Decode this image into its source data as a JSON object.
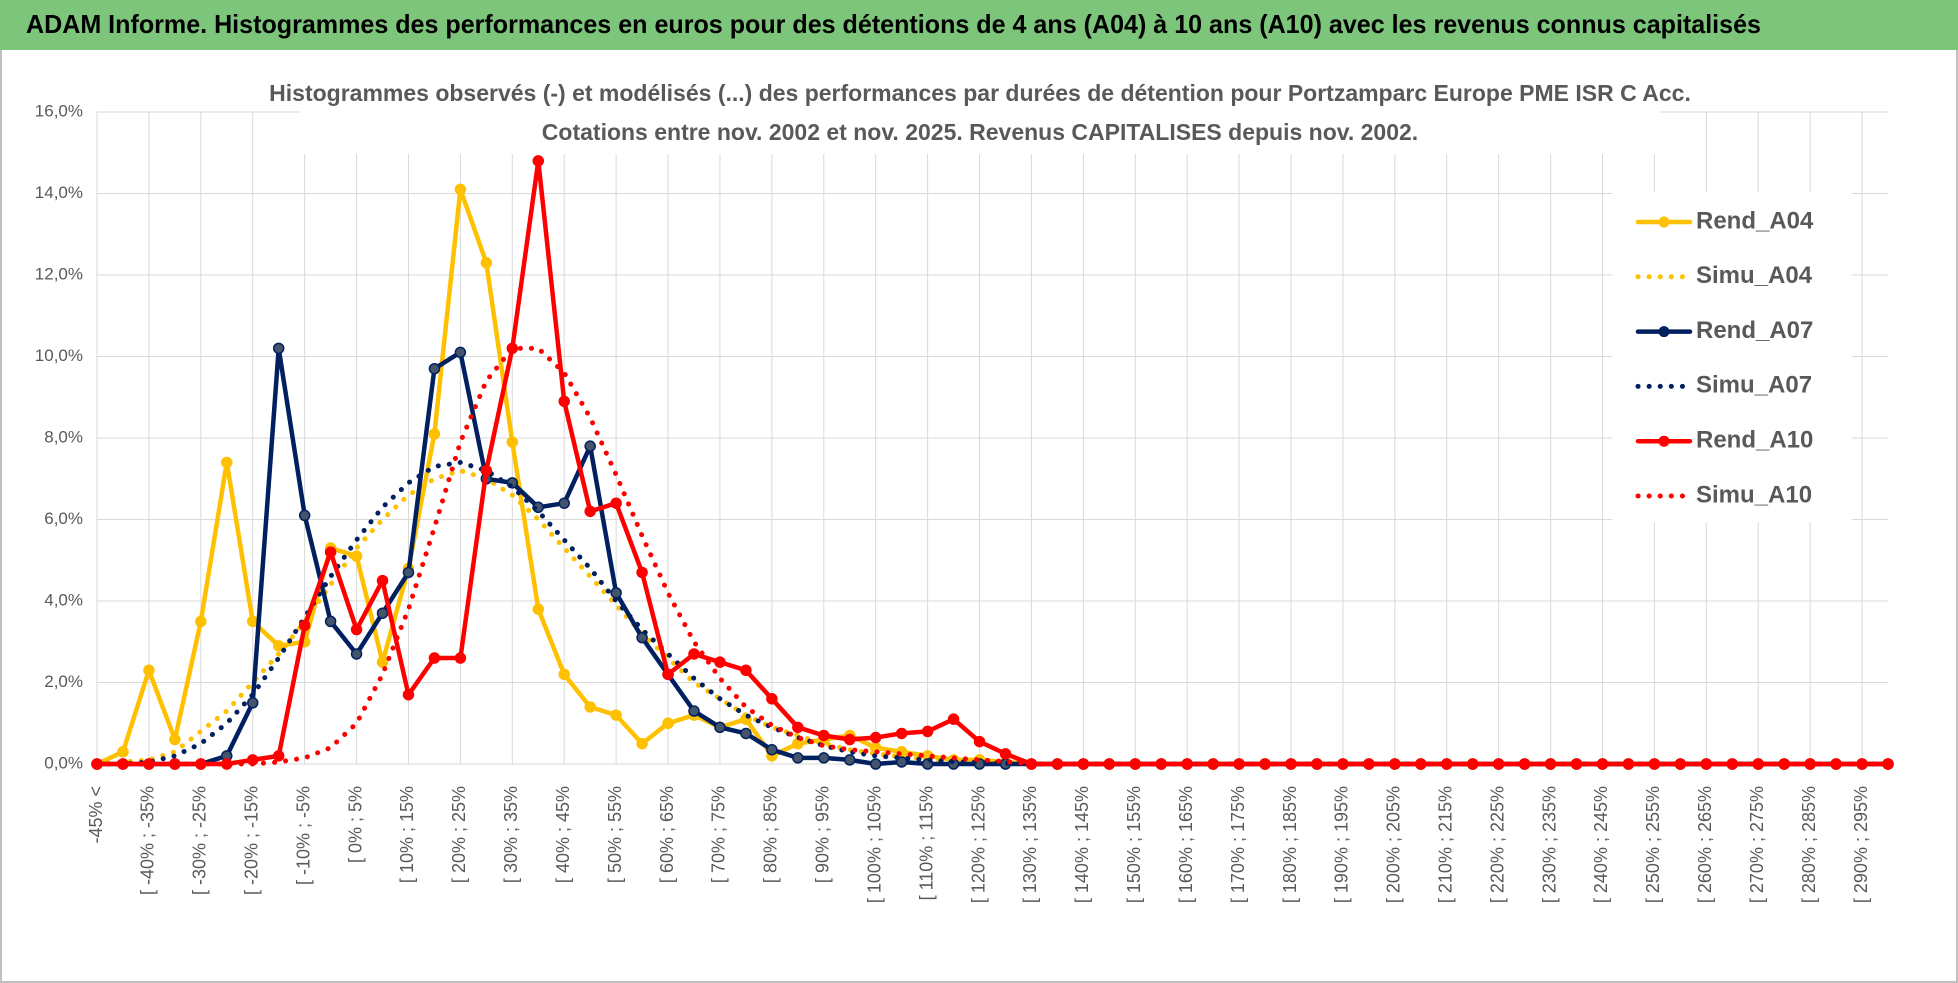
{
  "header": {
    "title": "ADAM Informe. Histogrammes des performances en euros pour des détentions de 4 ans (A04) à 10 ans (A10) avec les revenus connus capitalisés"
  },
  "chart_data": {
    "type": "line",
    "title": "Histogrammes observés (-) et modélisés (...) des performances par durées de détention pour Portzamparc Europe PME ISR C Acc.",
    "subtitle": "Cotations entre nov. 2002 et nov. 2025. Revenus CAPITALISES depuis nov. 2002.",
    "categories": [
      "-45% <",
      null,
      "[ -40% ; -35%",
      null,
      "[ -30% ; -25%",
      null,
      "[ -20% ; -15%",
      null,
      "[ -10% ; -5%",
      null,
      "[ 0% ; 5%",
      null,
      "[ 10% ; 15%",
      null,
      "[ 20% ; 25%",
      null,
      "[ 30% ; 35%",
      null,
      "[ 40% ; 45%",
      null,
      "[ 50% ; 55%",
      null,
      "[ 60% ; 65%",
      null,
      "[ 70% ; 75%",
      null,
      "[ 80% ; 85%",
      null,
      "[ 90% ; 95%",
      null,
      "[ 100% ; 105%",
      null,
      "[ 110% ; 115%",
      null,
      "[ 120% ; 125%",
      null,
      "[ 130% ; 135%",
      null,
      "[ 140% ; 145%",
      null,
      "[ 150% ; 155%",
      null,
      "[ 160% ; 165%",
      null,
      "[ 170% ; 175%",
      null,
      "[ 180% ; 185%",
      null,
      "[ 190% ; 195%",
      null,
      "[ 200% ; 205%",
      null,
      "[ 210% ; 215%",
      null,
      "[ 220% ; 225%",
      null,
      "[ 230% ; 235%",
      null,
      "[ 240% ; 245%",
      null,
      "[ 250% ; 255%",
      null,
      "[ 260% ; 265%",
      null,
      "[ 270% ; 275%",
      null,
      "[ 280% ; 285%",
      null,
      "[ 290% ; 295%",
      null
    ],
    "ylim": [
      0,
      16
    ],
    "yticks": [
      {
        "value": 0,
        "label": "0,0%"
      },
      {
        "value": 2,
        "label": "2,0%"
      },
      {
        "value": 4,
        "label": "4,0%"
      },
      {
        "value": 6,
        "label": "6,0%"
      },
      {
        "value": 8,
        "label": "8,0%"
      },
      {
        "value": 10,
        "label": "10,0%"
      },
      {
        "value": 12,
        "label": "12,0%"
      },
      {
        "value": 14,
        "label": "14,0%"
      },
      {
        "value": 16,
        "label": "16,0%"
      }
    ],
    "grid": true,
    "legend": "right",
    "series": [
      {
        "name": "Rend_A04",
        "color": "#FFC000",
        "line_style": "solid",
        "markers": true,
        "values": [
          0,
          0.3,
          2.3,
          0.6,
          3.5,
          7.4,
          3.5,
          2.9,
          3.0,
          5.3,
          5.1,
          2.5,
          4.8,
          8.1,
          14.1,
          12.3,
          7.9,
          3.8,
          2.2,
          1.4,
          1.2,
          0.5,
          1.0,
          1.2,
          0.9,
          1.1,
          0.2,
          0.5,
          0.6,
          0.7,
          0.4,
          0.3,
          0.2,
          0.1,
          0.1,
          0.05,
          0,
          0,
          0,
          0,
          0,
          0,
          0,
          0,
          0,
          0,
          0,
          0,
          0,
          0,
          0,
          0,
          0,
          0,
          0,
          0,
          0,
          0,
          0,
          0,
          0,
          0,
          0,
          0,
          0,
          0,
          0,
          0,
          0,
          0
        ]
      },
      {
        "name": "Simu_A04",
        "color": "#FFC000",
        "line_style": "dotted",
        "markers": false,
        "values": [
          0,
          0.05,
          0.1,
          0.3,
          0.8,
          1.3,
          2.0,
          2.7,
          3.5,
          4.4,
          5.3,
          6.0,
          6.6,
          7.0,
          7.2,
          7.0,
          6.6,
          6.0,
          5.3,
          4.6,
          3.9,
          3.2,
          2.6,
          2.0,
          1.6,
          1.2,
          0.9,
          0.7,
          0.5,
          0.35,
          0.25,
          0.18,
          0.12,
          0.08,
          0.05,
          0.03,
          0,
          0,
          0,
          0,
          0,
          0,
          0,
          0,
          0,
          0,
          0,
          0,
          0,
          0,
          0,
          0,
          0,
          0,
          0,
          0,
          0,
          0,
          0,
          0,
          0,
          0,
          0,
          0,
          0,
          0,
          0,
          0,
          0,
          0
        ]
      },
      {
        "name": "Rend_A07",
        "color": "#002060",
        "line_style": "solid",
        "markers": true,
        "values": [
          0,
          0,
          0,
          0,
          0,
          0.2,
          1.5,
          10.2,
          6.1,
          3.5,
          2.7,
          3.7,
          4.7,
          9.7,
          10.1,
          7.0,
          6.9,
          6.3,
          6.4,
          7.8,
          4.2,
          3.1,
          2.2,
          1.3,
          0.9,
          0.75,
          0.35,
          0.15,
          0.15,
          0.1,
          0,
          0.05,
          0,
          0,
          0,
          0,
          0,
          0,
          0,
          0,
          0,
          0,
          0,
          0,
          0,
          0,
          0,
          0,
          0,
          0,
          0,
          0,
          0,
          0,
          0,
          0,
          0,
          0,
          0,
          0,
          0,
          0,
          0,
          0,
          0,
          0,
          0,
          0,
          0,
          0
        ]
      },
      {
        "name": "Simu_A07",
        "color": "#002060",
        "line_style": "dotted",
        "markers": false,
        "values": [
          0,
          0,
          0.05,
          0.2,
          0.5,
          1.0,
          1.7,
          2.6,
          3.6,
          4.6,
          5.5,
          6.3,
          6.9,
          7.3,
          7.4,
          7.2,
          6.8,
          6.2,
          5.5,
          4.8,
          4.0,
          3.3,
          2.7,
          2.1,
          1.6,
          1.2,
          0.9,
          0.65,
          0.45,
          0.3,
          0.2,
          0.15,
          0.1,
          0.06,
          0.04,
          0.02,
          0,
          0,
          0,
          0,
          0,
          0,
          0,
          0,
          0,
          0,
          0,
          0,
          0,
          0,
          0,
          0,
          0,
          0,
          0,
          0,
          0,
          0,
          0,
          0,
          0,
          0,
          0,
          0,
          0,
          0,
          0,
          0,
          0,
          0
        ]
      },
      {
        "name": "Rend_A10",
        "color": "#FF0000",
        "line_style": "solid",
        "markers": true,
        "values": [
          0,
          0,
          0,
          0,
          0,
          0,
          0.1,
          0.2,
          3.4,
          5.2,
          3.3,
          4.5,
          1.7,
          2.6,
          2.6,
          7.2,
          10.2,
          14.8,
          8.9,
          6.2,
          6.4,
          4.7,
          2.2,
          2.7,
          2.5,
          2.3,
          1.6,
          0.9,
          0.7,
          0.6,
          0.65,
          0.75,
          0.8,
          1.1,
          0.55,
          0.25,
          0,
          0,
          0,
          0,
          0,
          0,
          0,
          0,
          0,
          0,
          0,
          0,
          0,
          0,
          0,
          0,
          0,
          0,
          0,
          0,
          0,
          0,
          0,
          0,
          0,
          0,
          0,
          0,
          0,
          0,
          0,
          0,
          0,
          0
        ]
      },
      {
        "name": "Simu_A10",
        "color": "#FF0000",
        "line_style": "dotted",
        "markers": false,
        "values": [
          0,
          0,
          0,
          0,
          0,
          0,
          0,
          0.05,
          0.15,
          0.4,
          1.0,
          2.2,
          3.8,
          5.8,
          7.9,
          9.4,
          10.2,
          10.2,
          9.6,
          8.5,
          7.1,
          5.6,
          4.2,
          3.0,
          2.1,
          1.4,
          0.95,
          0.65,
          0.45,
          0.35,
          0.3,
          0.25,
          0.2,
          0.15,
          0.1,
          0.06,
          0,
          0,
          0,
          0,
          0,
          0,
          0,
          0,
          0,
          0,
          0,
          0,
          0,
          0,
          0,
          0,
          0,
          0,
          0,
          0,
          0,
          0,
          0,
          0,
          0,
          0,
          0,
          0,
          0,
          0,
          0,
          0,
          0,
          0
        ]
      }
    ]
  }
}
